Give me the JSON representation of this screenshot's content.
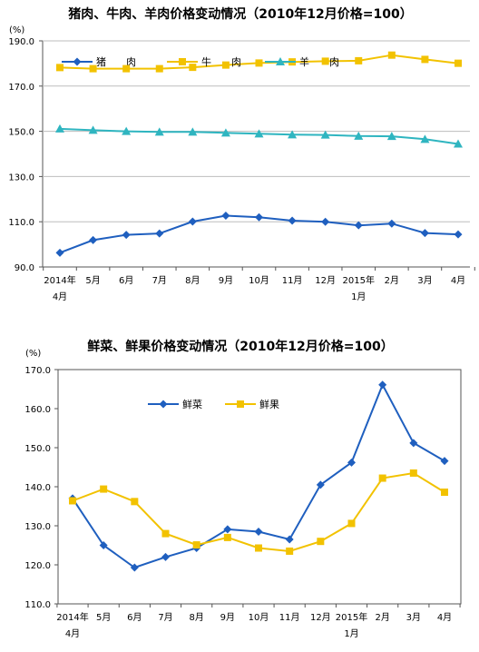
{
  "chart_data": [
    {
      "type": "line",
      "title": "猪肉、牛肉、羊肉价格变动情况（2010年12月价格=100）",
      "unit_label": "(%)",
      "ylim": [
        90,
        190
      ],
      "yticks": [
        "90.0",
        "110.0",
        "130.0",
        "150.0",
        "170.0",
        "190.0"
      ],
      "grid": "horizontal",
      "legend_position": "top-left",
      "categories": [
        "2014年|4月",
        "5月",
        "6月",
        "7月",
        "8月",
        "9月",
        "10月",
        "11月",
        "12月",
        "2015年|1月",
        "2月",
        "3月",
        "4月"
      ],
      "series": [
        {
          "name": "猪　　肉",
          "color": "#1F5FBF",
          "marker": "diamond",
          "values": [
            96.3,
            101.9,
            104.2,
            104.8,
            110.1,
            112.7,
            112.0,
            110.5,
            110.0,
            108.4,
            109.2,
            105.0,
            104.4
          ]
        },
        {
          "name": "牛　　肉",
          "color": "#F2C200",
          "marker": "square",
          "values": [
            178.2,
            177.7,
            177.7,
            177.7,
            178.3,
            179.3,
            180.2,
            180.7,
            181.0,
            181.2,
            183.7,
            181.8,
            180.1
          ]
        },
        {
          "name": "羊　　肉",
          "color": "#2FB5C0",
          "marker": "triangle",
          "values": [
            151.1,
            150.5,
            150.0,
            149.7,
            149.7,
            149.3,
            148.9,
            148.5,
            148.4,
            147.9,
            147.8,
            146.5,
            144.4
          ]
        }
      ]
    },
    {
      "type": "line",
      "title": "鲜菜、鲜果价格变动情况（2010年12月价格=100）",
      "unit_label": "(%)",
      "ylim": [
        110,
        170
      ],
      "yticks": [
        "110.0",
        "120.0",
        "130.0",
        "140.0",
        "150.0",
        "160.0",
        "170.0"
      ],
      "grid": "none",
      "legend_position": "top-left",
      "categories": [
        "2014年|4月",
        "5月",
        "6月",
        "7月",
        "8月",
        "9月",
        "10月",
        "11月",
        "12月",
        "2015年|1月",
        "2月",
        "3月",
        "4月"
      ],
      "series": [
        {
          "name": "鲜菜",
          "color": "#1F5FBF",
          "marker": "diamond",
          "values": [
            137.0,
            125.0,
            119.3,
            122.0,
            124.3,
            129.1,
            128.5,
            126.5,
            140.5,
            146.2,
            166.1,
            151.2,
            146.6
          ]
        },
        {
          "name": "鲜果",
          "color": "#F2C200",
          "marker": "square",
          "values": [
            136.4,
            139.4,
            136.2,
            128.0,
            125.1,
            127.0,
            124.3,
            123.5,
            126.0,
            130.6,
            142.2,
            143.5,
            138.6
          ]
        }
      ]
    }
  ]
}
